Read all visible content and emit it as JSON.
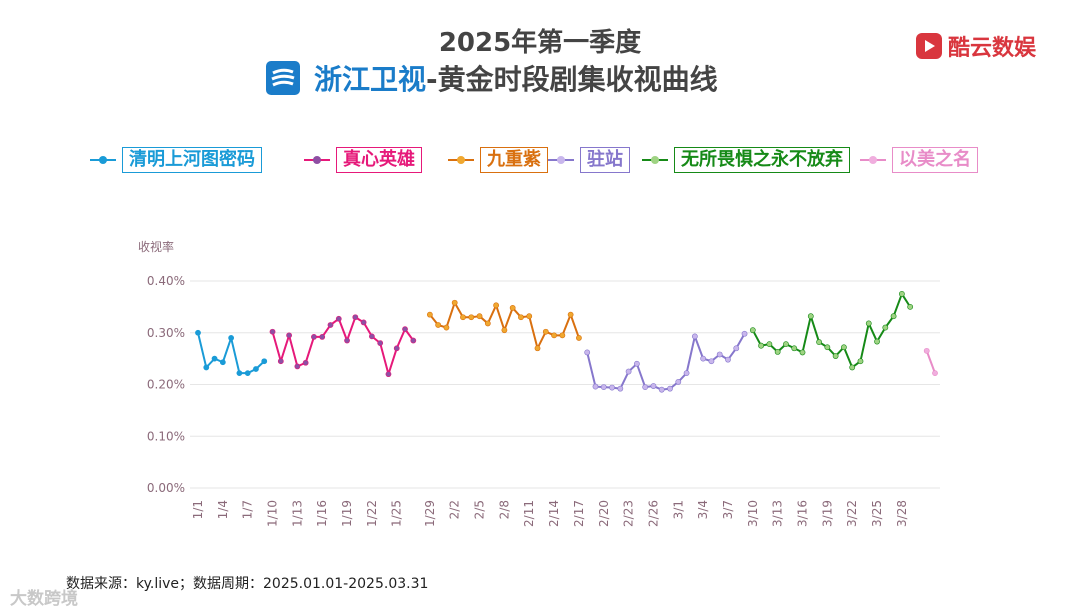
{
  "header": {
    "title_line1": "2025年第一季度",
    "channel": "浙江卫视",
    "title_line2_rest": "-黄金时段剧集收视曲线",
    "brand": "酷云数娱"
  },
  "footer": {
    "source": "数据来源：ky.live；数据周期：2025.01.01-2025.03.31",
    "watermark": "大数跨境"
  },
  "colors": {
    "title": "#444444",
    "channel": "#1a7cc9",
    "brand": "#d9363e",
    "axis_text": "#8b6a7a",
    "grid": "#e6e6e6"
  },
  "chart_data": {
    "type": "line",
    "ylabel": "收视率",
    "ylim": [
      0,
      0.4
    ],
    "yticks": [
      "0.00%",
      "0.10%",
      "0.20%",
      "0.30%",
      "0.40%"
    ],
    "x_range": [
      1,
      90
    ],
    "xtick_days": [
      1,
      4,
      7,
      10,
      13,
      16,
      19,
      22,
      25,
      29,
      32,
      35,
      38,
      41,
      44,
      47,
      50,
      53,
      56,
      59,
      62,
      65,
      68,
      71,
      74,
      77,
      80,
      83,
      86
    ],
    "xtick_labels": [
      "1/1",
      "1/4",
      "1/7",
      "1/10",
      "1/13",
      "1/16",
      "1/19",
      "1/22",
      "1/25",
      "1/29",
      "2/2",
      "2/5",
      "2/8",
      "2/11",
      "2/14",
      "2/17",
      "2/20",
      "2/23",
      "2/26",
      "3/1",
      "3/4",
      "3/7",
      "3/10",
      "3/13",
      "3/16",
      "3/19",
      "3/22",
      "3/25",
      "3/28"
    ],
    "grid": true,
    "series": [
      {
        "name": "清明上河图密码",
        "color": "#1a9bd7",
        "start_day": 1,
        "values": [
          0.3,
          0.233,
          0.25,
          0.243,
          0.29,
          0.222,
          0.222,
          0.23,
          0.245
        ]
      },
      {
        "name": "真心英雄",
        "color": "#e6197a",
        "marker": "#8e4fa3",
        "start_day": 10,
        "values": [
          0.302,
          0.245,
          0.295,
          0.235,
          0.242,
          0.292,
          0.292,
          0.315,
          0.327,
          0.285,
          0.33,
          0.32,
          0.293,
          0.28,
          0.22,
          0.27,
          0.307,
          0.285
        ]
      },
      {
        "name": "九重紫",
        "color": "#d9700f",
        "marker": "#f0a830",
        "start_day": 29,
        "values": [
          0.335,
          0.315,
          0.31,
          0.358,
          0.33,
          0.33,
          0.332,
          0.318,
          0.353,
          0.305,
          0.348,
          0.33,
          0.332,
          0.27,
          0.302,
          0.295,
          0.295,
          0.335,
          0.29
        ]
      },
      {
        "name": "驻站",
        "color": "#8677cc",
        "marker": "#c8b6ec",
        "start_day": 48,
        "values": [
          0.262,
          0.196,
          0.195,
          0.194,
          0.192,
          0.225,
          0.24,
          0.195,
          0.197,
          0.19,
          0.192,
          0.205,
          0.222,
          0.293,
          0.25,
          0.245,
          0.258,
          0.248,
          0.27,
          0.298
        ]
      },
      {
        "name": "无所畏惧之永不放弃",
        "color": "#168a17",
        "marker": "#9fd383",
        "start_day": 68,
        "values": [
          0.305,
          0.275,
          0.278,
          0.263,
          0.278,
          0.27,
          0.262,
          0.332,
          0.282,
          0.272,
          0.255,
          0.272,
          0.233,
          0.245,
          0.318,
          0.283,
          0.31,
          0.332,
          0.375,
          0.35
        ]
      },
      {
        "name": "以美之名",
        "color": "#e88cc8",
        "marker": "#f0aede",
        "start_day": 89,
        "values": [
          0.265,
          0.222
        ]
      }
    ]
  }
}
